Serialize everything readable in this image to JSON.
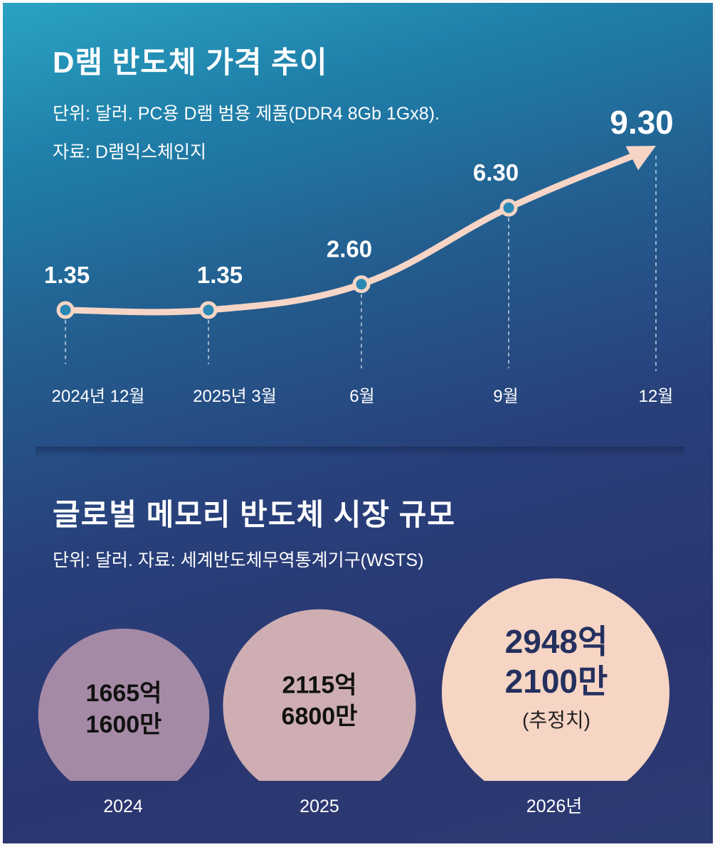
{
  "chart_data": [
    {
      "type": "line",
      "title": "D램 반도체 가격 추이",
      "subtitle": "단위: 달러. PC용 D램 범용 제품(DDR4 8Gb 1Gx8).",
      "source": "자료: D램익스체인지",
      "categories": [
        "2024년 12월",
        "2025년 3월",
        "6월",
        "9월",
        "12월"
      ],
      "value_labels": [
        "1.35",
        "1.35",
        "2.60",
        "6.30",
        "9.30"
      ],
      "series": [
        {
          "values": [
            1.35,
            1.35,
            2.6,
            6.3,
            9.3
          ]
        }
      ],
      "ylim": [
        1.35,
        9.3
      ],
      "grid": false,
      "colors": {
        "line": "#f6d5c6",
        "marker_fill": "#2a88b4"
      }
    },
    {
      "type": "bubble",
      "title": "글로벌 메모리 반도체 시장 규모",
      "subtitle": "단위: 달러. 자료: 세계반도체무역통계기구(WSTS)",
      "categories": [
        "2024",
        "2025",
        "2026년"
      ],
      "values": [
        166516000000,
        211568000000,
        294821000000
      ],
      "value_labels": [
        [
          "1665억",
          "1600만"
        ],
        [
          "2115억",
          "6800만"
        ],
        [
          "2948억",
          "2100만",
          "(추정치)"
        ]
      ],
      "colors": [
        "#a58aa6",
        "#ceaeb2",
        "#f6d5c5"
      ],
      "label_colors": [
        "#111111",
        "#111111",
        "#24305e"
      ]
    }
  ]
}
